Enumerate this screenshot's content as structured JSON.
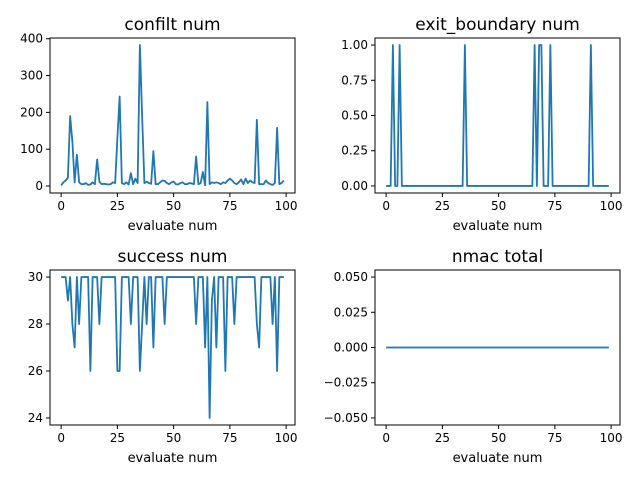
{
  "chart_data": [
    {
      "type": "line",
      "title": "confilt num",
      "xlabel": "evaluate num",
      "ylabel": "",
      "xlim": [
        -4.95,
        103.95
      ],
      "ylim": [
        -19,
        402
      ],
      "xticks": [
        0,
        25,
        50,
        75,
        100
      ],
      "yticks": [
        0,
        100,
        200,
        300,
        400
      ],
      "ytick_labels": [
        "0",
        "100",
        "200",
        "300",
        "400"
      ],
      "grid": false,
      "series": [
        {
          "color": "#1f77b4",
          "values": [
            2,
            10,
            15,
            22,
            190,
            120,
            10,
            85,
            10,
            5,
            5,
            8,
            3,
            4,
            10,
            5,
            72,
            12,
            5,
            6,
            5,
            4,
            5,
            10,
            8,
            130,
            243,
            8,
            5,
            10,
            4,
            35,
            5,
            20,
            8,
            383,
            190,
            8,
            12,
            8,
            6,
            95,
            5,
            5,
            10,
            15,
            14,
            8,
            5,
            10,
            12,
            5,
            4,
            8,
            10,
            5,
            5,
            8,
            7,
            5,
            80,
            5,
            8,
            38,
            2,
            228,
            5,
            10,
            8,
            10,
            8,
            5,
            10,
            8,
            15,
            20,
            15,
            8,
            5,
            10,
            18,
            5,
            20,
            8,
            15,
            10,
            8,
            180,
            5,
            5,
            5,
            15,
            8,
            5,
            3,
            8,
            158,
            5,
            8,
            15
          ]
        }
      ]
    },
    {
      "type": "line",
      "title": "exit_boundary num",
      "xlabel": "evaluate num",
      "ylabel": "",
      "xlim": [
        -4.95,
        103.95
      ],
      "ylim": [
        -0.05,
        1.05
      ],
      "xticks": [
        0,
        25,
        50,
        75,
        100
      ],
      "yticks": [
        0,
        0.25,
        0.5,
        0.75,
        1.0
      ],
      "ytick_labels": [
        "0.00",
        "0.25",
        "0.50",
        "0.75",
        "1.00"
      ],
      "grid": false,
      "series": [
        {
          "color": "#1f77b4",
          "values": [
            0,
            0,
            0,
            1,
            0,
            0,
            1,
            0,
            0,
            0,
            0,
            0,
            0,
            0,
            0,
            0,
            0,
            0,
            0,
            0,
            0,
            0,
            0,
            0,
            0,
            0,
            0,
            0,
            0,
            0,
            0,
            0,
            0,
            0,
            0,
            1,
            0,
            0,
            0,
            0,
            0,
            0,
            0,
            0,
            0,
            0,
            0,
            0,
            0,
            0,
            0,
            0,
            0,
            0,
            0,
            0,
            0,
            0,
            0,
            0,
            0,
            0,
            0,
            0,
            0,
            0,
            1,
            0,
            1,
            1,
            0,
            0,
            0,
            1,
            0,
            0,
            0,
            0,
            0,
            0,
            0,
            0,
            0,
            0,
            0,
            0,
            0,
            0,
            0,
            0,
            0,
            1,
            0,
            0,
            0,
            0,
            0,
            0,
            0,
            0
          ]
        }
      ]
    },
    {
      "type": "line",
      "title": "success num",
      "xlabel": "evaluate num",
      "ylabel": "",
      "xlim": [
        -4.95,
        103.95
      ],
      "ylim": [
        23.7,
        30.3
      ],
      "xticks": [
        0,
        25,
        50,
        75,
        100
      ],
      "yticks": [
        24,
        26,
        28,
        30
      ],
      "ytick_labels": [
        "24",
        "26",
        "28",
        "30"
      ],
      "grid": false,
      "series": [
        {
          "color": "#1f77b4",
          "values": [
            30,
            30,
            30,
            29,
            30,
            28,
            27,
            30,
            28,
            30,
            30,
            30,
            30,
            26,
            30,
            30,
            30,
            28,
            30,
            30,
            30,
            30,
            30,
            30,
            30,
            26,
            26,
            30,
            30,
            30,
            30,
            28,
            30,
            30,
            30,
            26,
            28,
            30,
            28,
            30,
            30,
            27,
            30,
            30,
            30,
            30,
            28,
            30,
            30,
            30,
            30,
            30,
            30,
            30,
            30,
            30,
            30,
            30,
            30,
            30,
            28,
            30,
            30,
            30,
            27,
            30,
            24,
            29,
            30,
            27,
            30,
            30,
            30,
            26,
            30,
            30,
            30,
            28,
            30,
            30,
            30,
            30,
            30,
            30,
            30,
            30,
            30,
            28,
            27,
            30,
            30,
            30,
            30,
            30,
            28,
            30,
            26,
            30,
            30,
            30
          ]
        }
      ]
    },
    {
      "type": "line",
      "title": "nmac total",
      "xlabel": "evaluate num",
      "ylabel": "",
      "xlim": [
        -4.95,
        103.95
      ],
      "ylim": [
        -0.055,
        0.055
      ],
      "xticks": [
        0,
        25,
        50,
        75,
        100
      ],
      "yticks": [
        -0.05,
        -0.025,
        0.0,
        0.025,
        0.05
      ],
      "ytick_labels": [
        "−0.050",
        "−0.025",
        "0.000",
        "0.025",
        "0.050"
      ],
      "grid": false,
      "series": [
        {
          "color": "#1f77b4",
          "values": [
            0,
            0,
            0,
            0,
            0,
            0,
            0,
            0,
            0,
            0,
            0,
            0,
            0,
            0,
            0,
            0,
            0,
            0,
            0,
            0,
            0,
            0,
            0,
            0,
            0,
            0,
            0,
            0,
            0,
            0,
            0,
            0,
            0,
            0,
            0,
            0,
            0,
            0,
            0,
            0,
            0,
            0,
            0,
            0,
            0,
            0,
            0,
            0,
            0,
            0,
            0,
            0,
            0,
            0,
            0,
            0,
            0,
            0,
            0,
            0,
            0,
            0,
            0,
            0,
            0,
            0,
            0,
            0,
            0,
            0,
            0,
            0,
            0,
            0,
            0,
            0,
            0,
            0,
            0,
            0,
            0,
            0,
            0,
            0,
            0,
            0,
            0,
            0,
            0,
            0,
            0,
            0,
            0,
            0,
            0,
            0,
            0,
            0,
            0,
            0
          ]
        }
      ]
    }
  ]
}
